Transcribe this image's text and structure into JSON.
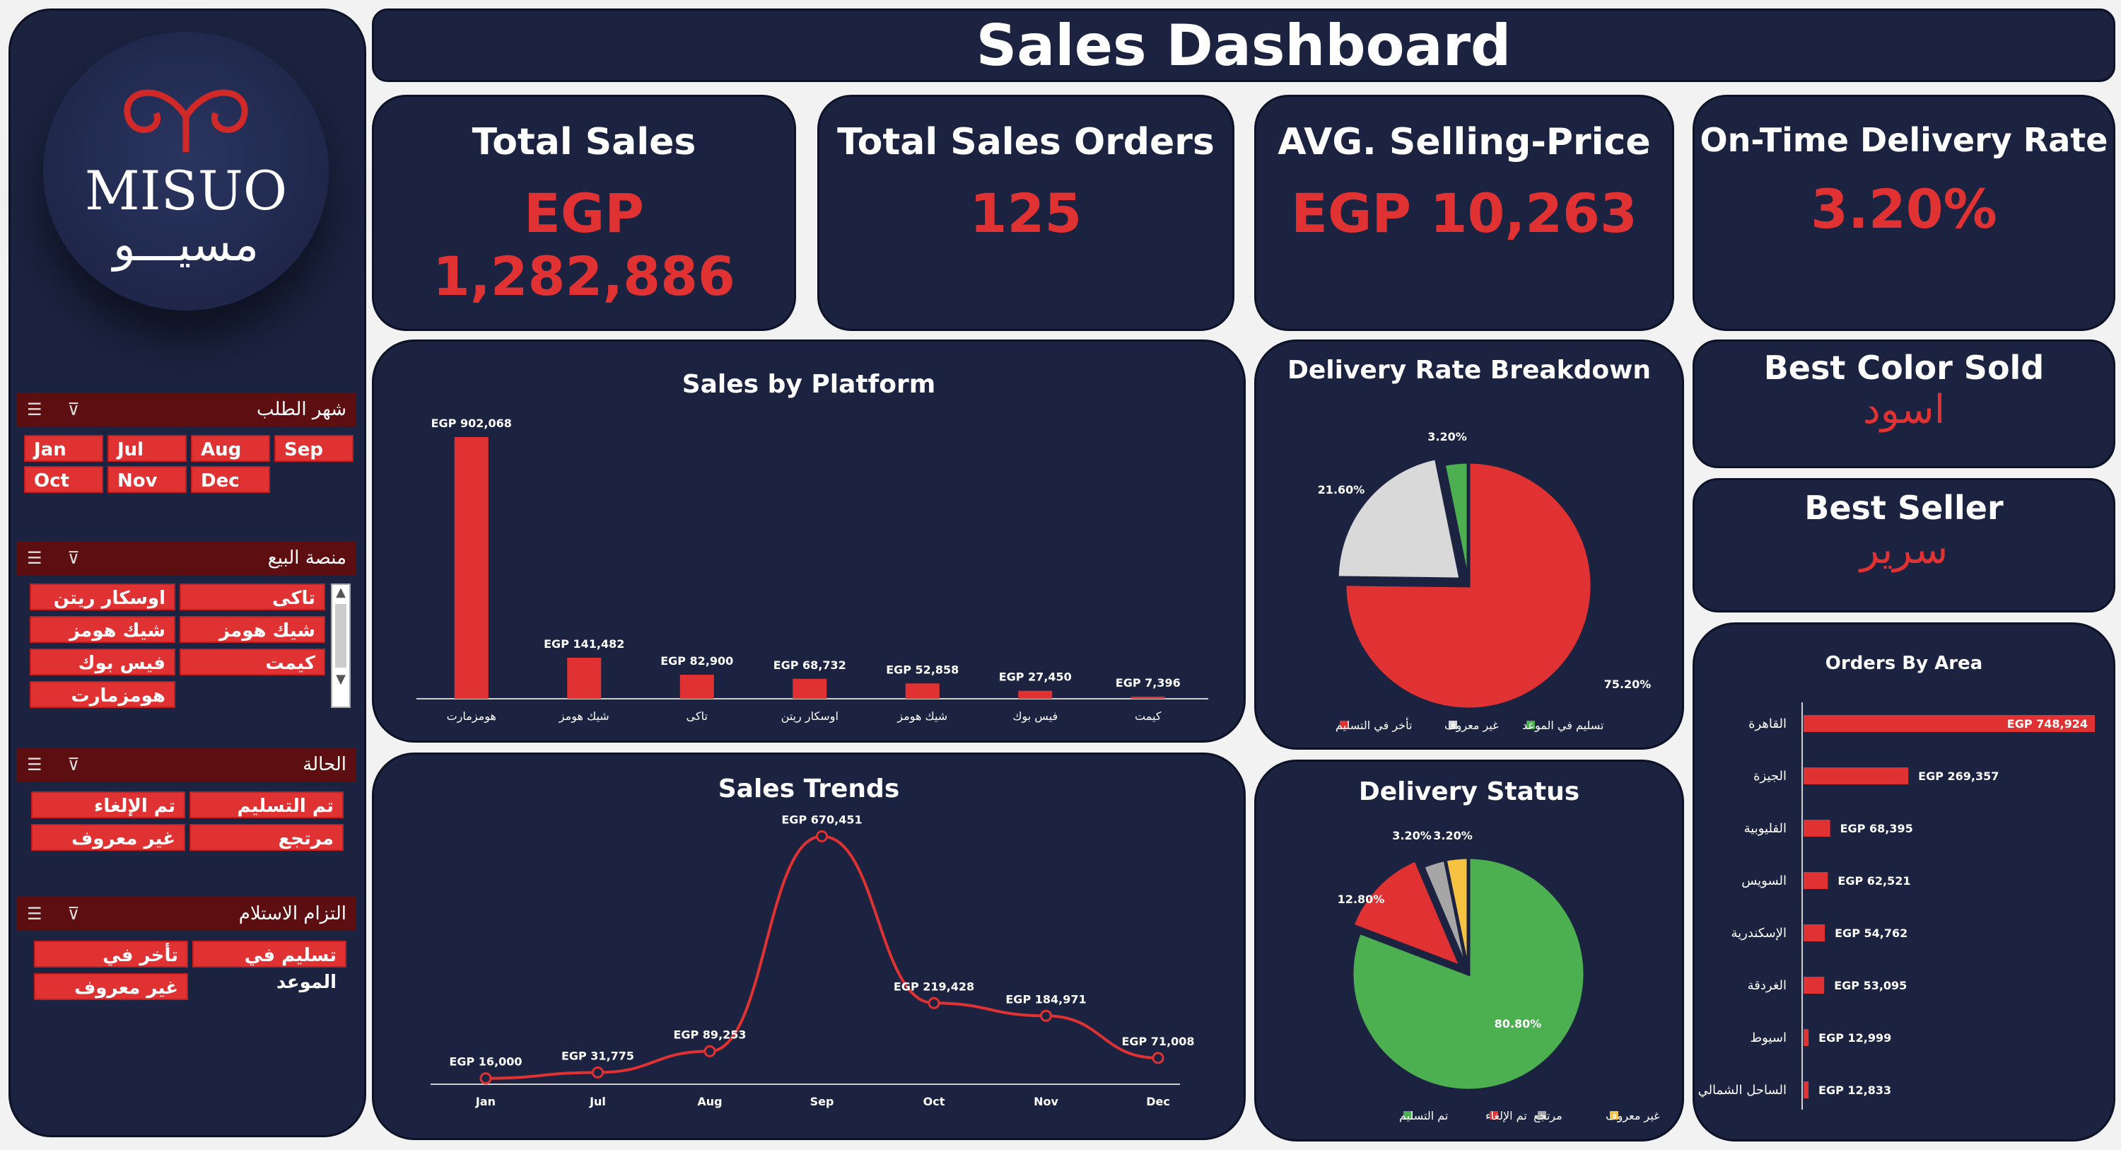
{
  "title": "Sales Dashboard",
  "brand": {
    "name_latin": "MISUO",
    "name_arabic": "مسيـــو"
  },
  "kpis": [
    {
      "title": "Total Sales",
      "value": "EGP 1,282,886"
    },
    {
      "title": "Total Sales Orders",
      "value": "125"
    },
    {
      "title": "AVG. Selling-Price",
      "value": "EGP 10,263"
    },
    {
      "title": "On-Time Delivery Rate",
      "value": "3.20%"
    }
  ],
  "best_color": {
    "title": "Best Color Sold",
    "value": "اسود"
  },
  "best_seller": {
    "title": "Best Seller",
    "value": "سرير"
  },
  "slicers": {
    "month": {
      "title": "شهر الطلب",
      "items": [
        "Jan",
        "Jul",
        "Aug",
        "Sep",
        "Oct",
        "Nov",
        "Dec"
      ]
    },
    "platform": {
      "title": "منصة البيع",
      "items": [
        "تاكى",
        "اوسكار ريتن",
        "شيك هومز",
        "شيك هومز",
        "كيمت",
        "فيس بوك",
        "هومزمارت"
      ]
    },
    "status": {
      "title": "الحالة",
      "items": [
        "تم التسليم",
        "تم الإلغاء",
        "مرتجع",
        "غير معروف"
      ]
    },
    "commitment": {
      "title": "التزام الاستلام",
      "items": [
        "تسليم في الموعد",
        "تأخر في التسليم",
        "غير معروف"
      ]
    }
  },
  "colors": {
    "panel": "#1b2340",
    "accent_red": "#e03232",
    "green": "#4caf50",
    "grey": "#d9d9d9",
    "yellow": "#f5c242",
    "grey2": "#a6a6a6"
  },
  "chart_data": [
    {
      "type": "bar",
      "title": "Sales by Platform",
      "categories": [
        "هومزمارت",
        "شيك هومز",
        "تاكى",
        "اوسكار ريتن",
        "شيك هومز",
        "فيس بوك",
        "كيمت"
      ],
      "values": [
        902068,
        141482,
        82900,
        68732,
        52858,
        27450,
        7396
      ],
      "labels": [
        "EGP 902,068",
        "EGP 141,482",
        "EGP 82,900",
        "EGP 68,732",
        "EGP 52,858",
        "EGP 27,450",
        "EGP 7,396"
      ],
      "ylim": [
        0,
        902068
      ]
    },
    {
      "type": "line",
      "title": "Sales Trends",
      "categories": [
        "Jan",
        "Jul",
        "Aug",
        "Sep",
        "Oct",
        "Nov",
        "Dec"
      ],
      "values": [
        16000,
        31775,
        89253,
        670451,
        219428,
        184971,
        71008
      ],
      "labels": [
        "EGP 16,000",
        "EGP 31,775",
        "EGP 89,253",
        "EGP 670,451",
        "EGP 219,428",
        "EGP 184,971",
        "EGP 71,008"
      ],
      "ylim": [
        0,
        700000
      ]
    },
    {
      "type": "pie",
      "title": "Delivery Rate Breakdown",
      "slices": [
        {
          "name": "تأخر في التسليم",
          "value": 75.2,
          "label": "75.20%",
          "color": "#e03232"
        },
        {
          "name": "غير معروف",
          "value": 21.6,
          "label": "21.60%",
          "color": "#d9d9d9"
        },
        {
          "name": "تسليم في الموعد",
          "value": 3.2,
          "label": "3.20%",
          "color": "#4caf50"
        }
      ]
    },
    {
      "type": "pie",
      "title": "Delivery Status",
      "slices": [
        {
          "name": "تم التسليم",
          "value": 80.8,
          "label": "80.80%",
          "color": "#4caf50"
        },
        {
          "name": "تم الإلغاء",
          "value": 12.8,
          "label": "12.80%",
          "color": "#e03232"
        },
        {
          "name": "مرتجع",
          "value": 3.2,
          "label": "3.20%",
          "color": "#a6a6a6"
        },
        {
          "name": "غير معروف",
          "value": 3.2,
          "label": "3.20%",
          "color": "#f5c242"
        }
      ]
    },
    {
      "type": "bar",
      "orientation": "horizontal",
      "title": "Orders By Area",
      "categories": [
        "القاهرة",
        "الجيزة",
        "القليوبية",
        "السويس",
        "الإسكندرية",
        "الغردقة",
        "اسيوط",
        "الساحل الشمالي"
      ],
      "values": [
        748924,
        269357,
        68395,
        62521,
        54762,
        53095,
        12999,
        12833
      ],
      "labels": [
        "EGP 748,924",
        "EGP 269,357",
        "EGP 68,395",
        "EGP 62,521",
        "EGP 54,762",
        "EGP 53,095",
        "EGP 12,999",
        "EGP 12,833"
      ],
      "xlim": [
        0,
        748924
      ]
    }
  ]
}
